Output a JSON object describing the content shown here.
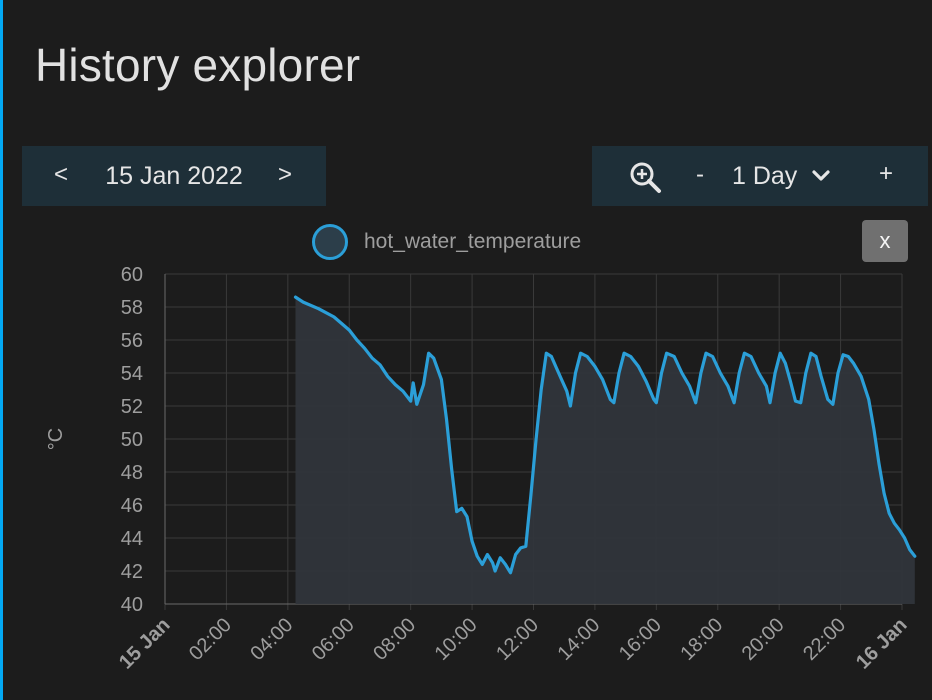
{
  "page": {
    "title": "History explorer"
  },
  "date_nav": {
    "prev_label": "<",
    "date_label": "15 Jan 2022",
    "next_label": ">"
  },
  "range_control": {
    "zoom_icon": "zoom-in-icon",
    "minus_label": "-",
    "range_label": "1 Day",
    "dropdown_icon": "chevron-down-icon",
    "plus_label": "+"
  },
  "legend": {
    "series_name": "hot_water_temperature",
    "color": "#2b9fd8"
  },
  "close_button": {
    "label": "x"
  },
  "colors": {
    "background": "#1c1c1c",
    "accent": "#03a9f4",
    "panel": "#1e2f38",
    "line": "#2b9fd8",
    "fill": "#30353b",
    "grid": "#3a3a3a",
    "tick_text": "#9e9e9e"
  },
  "chart_data": {
    "type": "area",
    "title": "",
    "xlabel": "",
    "ylabel": "°C",
    "ylim": [
      40,
      60
    ],
    "yticks": [
      "40",
      "42",
      "44",
      "46",
      "48",
      "50",
      "52",
      "54",
      "56",
      "58",
      "60"
    ],
    "xlim": [
      "2022-01-15 00:00",
      "2022-01-16 00:00"
    ],
    "xticks": [
      {
        "t": "2022-01-15 00:00",
        "label": "15 Jan",
        "bold": true
      },
      {
        "t": "2022-01-15 02:00",
        "label": "02:00"
      },
      {
        "t": "2022-01-15 04:00",
        "label": "04:00"
      },
      {
        "t": "2022-01-15 06:00",
        "label": "06:00"
      },
      {
        "t": "2022-01-15 08:00",
        "label": "08:00"
      },
      {
        "t": "2022-01-15 10:00",
        "label": "10:00"
      },
      {
        "t": "2022-01-15 12:00",
        "label": "12:00"
      },
      {
        "t": "2022-01-15 14:00",
        "label": "14:00"
      },
      {
        "t": "2022-01-15 16:00",
        "label": "16:00"
      },
      {
        "t": "2022-01-15 18:00",
        "label": "18:00"
      },
      {
        "t": "2022-01-15 20:00",
        "label": "20:00"
      },
      {
        "t": "2022-01-15 22:00",
        "label": "22:00"
      },
      {
        "t": "2022-01-16 00:00",
        "label": "16 Jan",
        "bold": true
      }
    ],
    "grid": true,
    "legend_position": "top-center",
    "series": [
      {
        "name": "hot_water_temperature",
        "points": [
          [
            "04:15",
            58.6
          ],
          [
            "04:30",
            58.3
          ],
          [
            "05:00",
            57.9
          ],
          [
            "05:30",
            57.4
          ],
          [
            "05:45",
            57.0
          ],
          [
            "06:00",
            56.6
          ],
          [
            "06:15",
            56.0
          ],
          [
            "06:30",
            55.5
          ],
          [
            "06:45",
            54.9
          ],
          [
            "07:00",
            54.5
          ],
          [
            "07:15",
            53.8
          ],
          [
            "07:30",
            53.3
          ],
          [
            "07:45",
            52.9
          ],
          [
            "08:00",
            52.3
          ],
          [
            "08:05",
            53.4
          ],
          [
            "08:12",
            52.1
          ],
          [
            "08:25",
            53.3
          ],
          [
            "08:35",
            55.2
          ],
          [
            "08:45",
            54.9
          ],
          [
            "09:00",
            53.6
          ],
          [
            "09:10",
            51.2
          ],
          [
            "09:20",
            48.2
          ],
          [
            "09:30",
            45.6
          ],
          [
            "09:40",
            45.8
          ],
          [
            "09:50",
            45.3
          ],
          [
            "10:00",
            43.8
          ],
          [
            "10:10",
            42.9
          ],
          [
            "10:20",
            42.4
          ],
          [
            "10:30",
            43.0
          ],
          [
            "10:40",
            42.5
          ],
          [
            "10:45",
            42.0
          ],
          [
            "10:55",
            42.8
          ],
          [
            "11:05",
            42.4
          ],
          [
            "11:15",
            41.9
          ],
          [
            "11:25",
            43.0
          ],
          [
            "11:35",
            43.4
          ],
          [
            "11:45",
            43.5
          ],
          [
            "11:55",
            46.6
          ],
          [
            "12:05",
            50.0
          ],
          [
            "12:15",
            53.0
          ],
          [
            "12:25",
            55.2
          ],
          [
            "12:35",
            55.0
          ],
          [
            "12:45",
            54.3
          ],
          [
            "12:55",
            53.6
          ],
          [
            "13:05",
            52.9
          ],
          [
            "13:12",
            52.0
          ],
          [
            "13:22",
            54.0
          ],
          [
            "13:32",
            55.2
          ],
          [
            "13:45",
            55.0
          ],
          [
            "14:00",
            54.4
          ],
          [
            "14:15",
            53.6
          ],
          [
            "14:30",
            52.4
          ],
          [
            "14:37",
            52.2
          ],
          [
            "14:47",
            54.0
          ],
          [
            "14:57",
            55.2
          ],
          [
            "15:10",
            55.0
          ],
          [
            "15:25",
            54.4
          ],
          [
            "15:40",
            53.5
          ],
          [
            "15:55",
            52.4
          ],
          [
            "16:00",
            52.2
          ],
          [
            "16:10",
            54.0
          ],
          [
            "16:20",
            55.2
          ],
          [
            "16:35",
            55.0
          ],
          [
            "16:50",
            54.0
          ],
          [
            "17:05",
            53.2
          ],
          [
            "17:17",
            52.2
          ],
          [
            "17:27",
            54.0
          ],
          [
            "17:37",
            55.2
          ],
          [
            "17:50",
            55.0
          ],
          [
            "18:05",
            54.0
          ],
          [
            "18:20",
            53.2
          ],
          [
            "18:32",
            52.2
          ],
          [
            "18:42",
            54.0
          ],
          [
            "18:52",
            55.2
          ],
          [
            "19:05",
            55.0
          ],
          [
            "19:20",
            54.0
          ],
          [
            "19:35",
            53.2
          ],
          [
            "19:42",
            52.2
          ],
          [
            "19:52",
            54.0
          ],
          [
            "20:02",
            55.2
          ],
          [
            "20:12",
            54.6
          ],
          [
            "20:22",
            53.5
          ],
          [
            "20:32",
            52.3
          ],
          [
            "20:42",
            52.2
          ],
          [
            "20:52",
            54.0
          ],
          [
            "21:02",
            55.2
          ],
          [
            "21:12",
            55.0
          ],
          [
            "21:22",
            53.8
          ],
          [
            "21:35",
            52.4
          ],
          [
            "21:45",
            52.1
          ],
          [
            "21:55",
            54.0
          ],
          [
            "22:05",
            55.1
          ],
          [
            "22:15",
            55.0
          ],
          [
            "22:25",
            54.6
          ],
          [
            "22:40",
            53.8
          ],
          [
            "22:55",
            52.4
          ],
          [
            "23:05",
            50.6
          ],
          [
            "23:15",
            48.5
          ],
          [
            "23:25",
            46.7
          ],
          [
            "23:35",
            45.5
          ],
          [
            "23:45",
            44.9
          ],
          [
            "23:55",
            44.5
          ],
          [
            "24:05",
            44.0
          ],
          [
            "24:15",
            43.3
          ],
          [
            "24:25",
            42.9
          ]
        ]
      }
    ]
  }
}
